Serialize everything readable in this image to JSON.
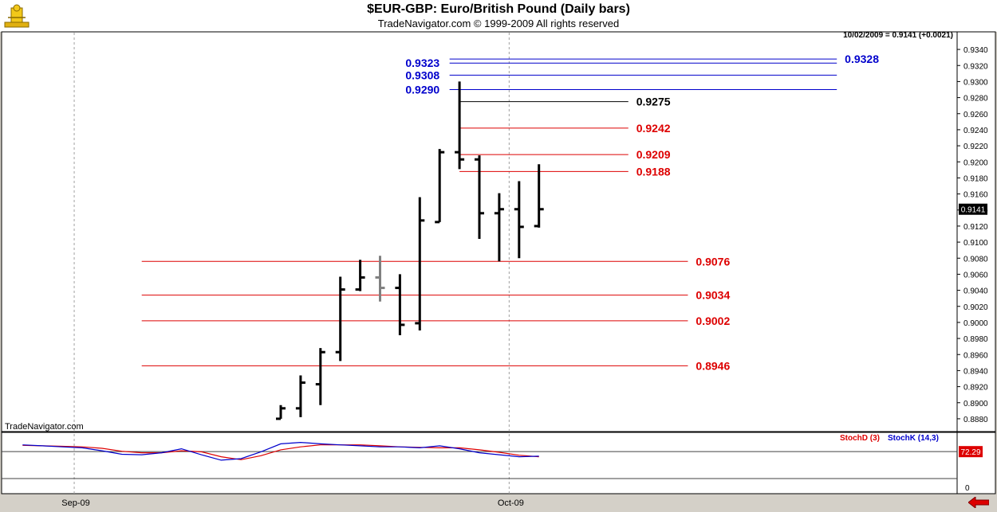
{
  "window": {
    "title": "$EUR-GBP:  Euro/British Pound  (Daily bars)",
    "subtitle": "TradeNavigator.com © 1999-2009 All rights reserved",
    "watermark": "TradeNavigator.com",
    "quote": "10/02/2009 = 0.9141 (+0.0021)"
  },
  "chart_data": [
    {
      "type": "ohlc",
      "ylim": [
        0.887,
        0.935
      ],
      "y_ticks": [
        "0.8880",
        "0.8900",
        "0.8920",
        "0.8940",
        "0.8960",
        "0.8980",
        "0.9000",
        "0.9020",
        "0.9040",
        "0.9060",
        "0.9080",
        "0.9100",
        "0.9120",
        "0.9140",
        "0.9160",
        "0.9180",
        "0.9200",
        "0.9220",
        "0.9240",
        "0.9260",
        "0.9280",
        "0.9300",
        "0.9320",
        "0.9340"
      ],
      "x_labels": [
        {
          "label": "Sep-09",
          "index": -10.4
        },
        {
          "label": "Oct-09",
          "index": 11.5
        }
      ],
      "last_price_label": "0.9141",
      "bars": [
        {
          "o": 0.888,
          "h": 0.8897,
          "l": 0.888,
          "c": 0.8893
        },
        {
          "o": 0.8893,
          "h": 0.8934,
          "l": 0.8882,
          "c": 0.8925
        },
        {
          "o": 0.8923,
          "h": 0.8968,
          "l": 0.8897,
          "c": 0.8963
        },
        {
          "o": 0.8963,
          "h": 0.9057,
          "l": 0.8952,
          "c": 0.9041
        },
        {
          "o": 0.9041,
          "h": 0.9078,
          "l": 0.9039,
          "c": 0.9056
        },
        {
          "o": 0.9056,
          "h": 0.9083,
          "l": 0.9026,
          "c": 0.9043,
          "color": "#808080"
        },
        {
          "o": 0.9043,
          "h": 0.906,
          "l": 0.8984,
          "c": 0.8997
        },
        {
          "o": 0.8999,
          "h": 0.9156,
          "l": 0.899,
          "c": 0.9127
        },
        {
          "o": 0.9125,
          "h": 0.9216,
          "l": 0.9125,
          "c": 0.9212
        },
        {
          "o": 0.9212,
          "h": 0.93,
          "l": 0.9191,
          "c": 0.9203
        },
        {
          "o": 0.9203,
          "h": 0.9208,
          "l": 0.9104,
          "c": 0.9136
        },
        {
          "o": 0.9136,
          "h": 0.9161,
          "l": 0.9076,
          "c": 0.9141
        },
        {
          "o": 0.9141,
          "h": 0.9176,
          "l": 0.908,
          "c": 0.9119
        },
        {
          "o": 0.912,
          "h": 0.9197,
          "l": 0.9118,
          "c": 0.9141
        }
      ],
      "levels": [
        {
          "price": 0.9328,
          "label": "0.9328",
          "side": "right",
          "color": "#0000cc",
          "from": 8.5,
          "to": 28.0,
          "label_at": 28.4
        },
        {
          "price": 0.9323,
          "label": "0.9323",
          "side": "left",
          "color": "#0000cc",
          "from": 8.5,
          "to": 28.0,
          "label_at": 8.0
        },
        {
          "price": 0.9308,
          "label": "0.9308",
          "side": "left",
          "color": "#0000cc",
          "from": 8.5,
          "to": 28.0,
          "label_at": 8.0
        },
        {
          "price": 0.929,
          "label": "0.9290",
          "side": "left",
          "color": "#0000cc",
          "from": 8.5,
          "to": 28.0,
          "label_at": 8.0
        },
        {
          "price": 0.9275,
          "label": "0.9275",
          "side": "right",
          "color": "#000000",
          "from": 9.0,
          "to": 17.5,
          "label_at": 17.9
        },
        {
          "price": 0.9242,
          "label": "0.9242",
          "side": "right",
          "color": "#dd0000",
          "from": 9.0,
          "to": 17.5,
          "label_at": 17.9
        },
        {
          "price": 0.9209,
          "label": "0.9209",
          "side": "right",
          "color": "#dd0000",
          "from": 9.0,
          "to": 17.5,
          "label_at": 17.9
        },
        {
          "price": 0.9188,
          "label": "0.9188",
          "side": "right",
          "color": "#dd0000",
          "from": 9.0,
          "to": 17.5,
          "label_at": 17.9
        },
        {
          "price": 0.9076,
          "label": "0.9076",
          "side": "right",
          "color": "#dd0000",
          "from": -7.0,
          "to": 20.5,
          "label_at": 20.9
        },
        {
          "price": 0.9034,
          "label": "0.9034",
          "side": "right",
          "color": "#dd0000",
          "from": -7.0,
          "to": 20.5,
          "label_at": 20.9
        },
        {
          "price": 0.9002,
          "label": "0.9002",
          "side": "right",
          "color": "#dd0000",
          "from": -7.0,
          "to": 20.5,
          "label_at": 20.9
        },
        {
          "price": 0.8946,
          "label": "0.8946",
          "side": "right",
          "color": "#dd0000",
          "from": -7.0,
          "to": 20.5,
          "label_at": 20.9
        }
      ]
    },
    {
      "type": "line",
      "ylim": [
        0,
        100
      ],
      "y_ticks": [
        "0"
      ],
      "reference_line": 72.29,
      "current_value_label": "72.29",
      "x": [
        -13,
        -12,
        -11,
        -10,
        -9,
        -8,
        -7,
        -6,
        -5,
        -4,
        -3,
        -2,
        -1,
        0,
        1,
        2,
        3,
        4,
        5,
        6,
        7,
        8,
        9,
        10,
        11,
        12,
        13
      ],
      "series": [
        {
          "name": "StochD (3)",
          "color": "#dd0000",
          "values": [
            85,
            84,
            83,
            82,
            79,
            73,
            70,
            70,
            74,
            72,
            62,
            56,
            64,
            76,
            82,
            86,
            86,
            86,
            84,
            82,
            81,
            80,
            80,
            76,
            71,
            65,
            62
          ]
        },
        {
          "name": "StochK (14,3)",
          "color": "#0000cc",
          "values": [
            86,
            84,
            82,
            80,
            74,
            67,
            66,
            70,
            78,
            66,
            55,
            58,
            72,
            88,
            91,
            88,
            86,
            84,
            82,
            82,
            80,
            84,
            78,
            70,
            66,
            62,
            63
          ]
        }
      ]
    }
  ]
}
